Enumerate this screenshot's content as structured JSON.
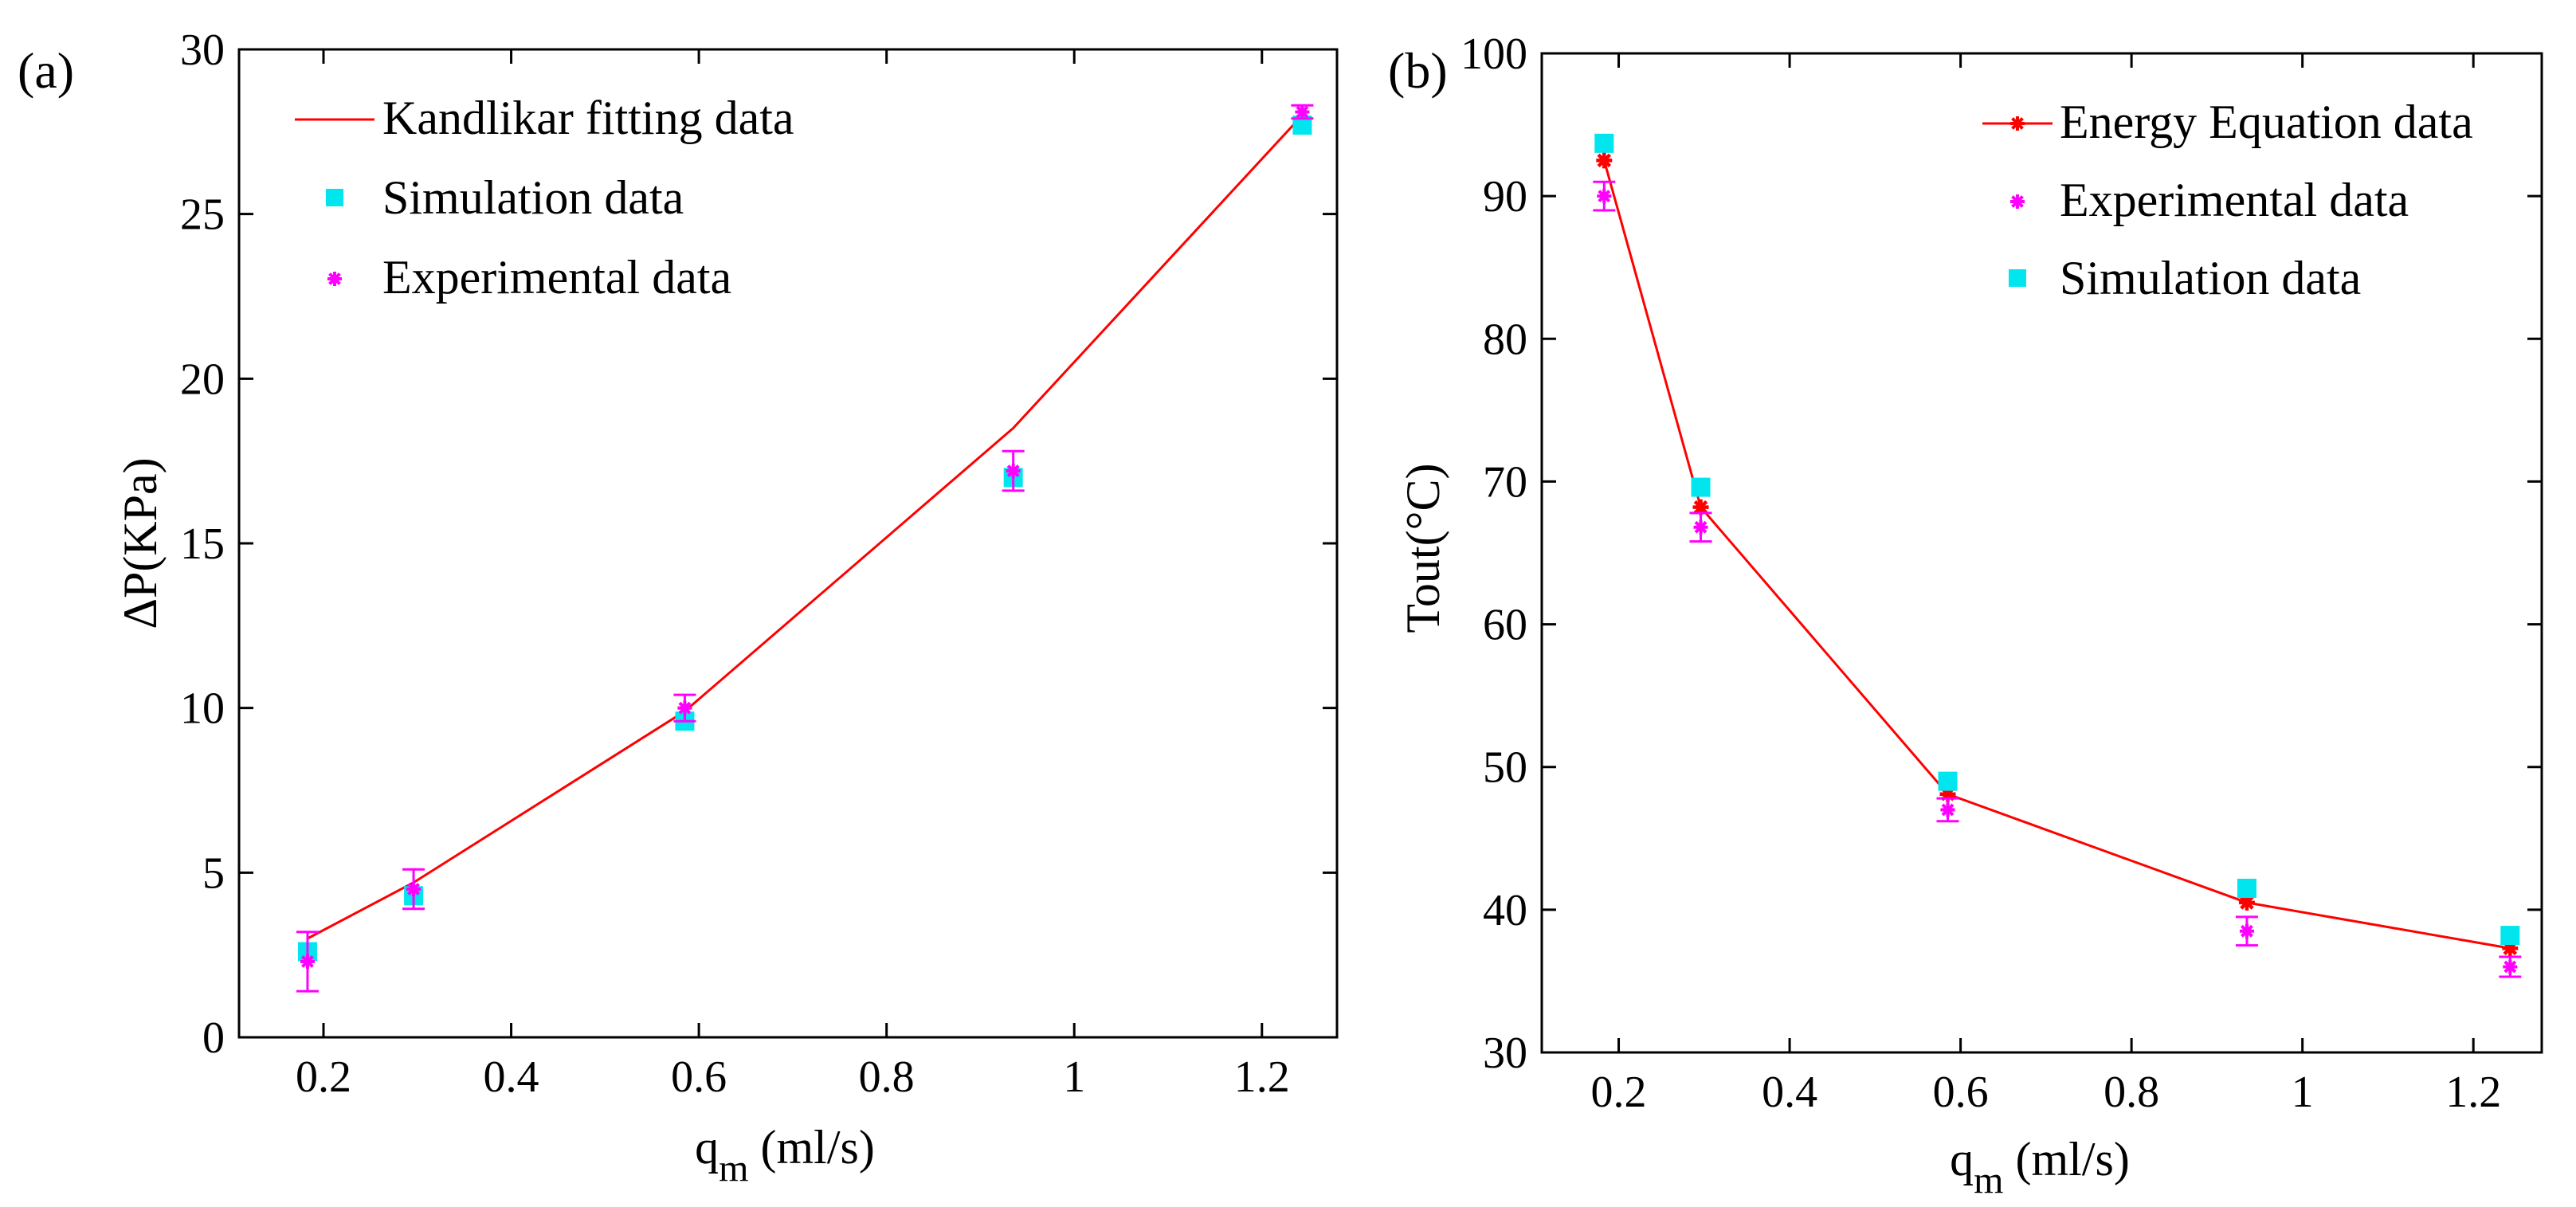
{
  "figure": {
    "panels": [
      {
        "label": "(a)"
      },
      {
        "label": "(b)"
      }
    ]
  },
  "chart_data": [
    {
      "type": "line",
      "panel_label": "(a)",
      "title": "",
      "xlabel": "q_m (ml/s)",
      "xlabel_main": "q",
      "xlabel_sub": "m",
      "xlabel_unit": " (ml/s)",
      "ylabel": "ΔP(KPa)",
      "xlim": [
        0.11,
        1.28
      ],
      "ylim": [
        0,
        30
      ],
      "xticks": [
        0.2,
        0.4,
        0.6,
        0.8,
        1.0,
        1.2
      ],
      "xtick_labels": [
        "0.2",
        "0.4",
        "0.6",
        "0.8",
        "1",
        "1.2"
      ],
      "yticks": [
        0,
        5,
        10,
        15,
        20,
        25,
        30
      ],
      "ytick_labels": [
        "0",
        "5",
        "10",
        "15",
        "20",
        "25",
        "30"
      ],
      "grid": false,
      "legend_position": "top-left",
      "series": [
        {
          "name": "Kandlikar fitting data",
          "kind": "line",
          "color": "#ff0000",
          "x": [
            0.183,
            0.296,
            0.585,
            0.935,
            1.243
          ],
          "y": [
            3.0,
            4.7,
            9.9,
            18.5,
            28.0
          ]
        },
        {
          "name": "Simulation data",
          "kind": "square",
          "color": "#00e5ee",
          "x": [
            0.183,
            0.296,
            0.585,
            0.935,
            1.243
          ],
          "y": [
            2.6,
            4.3,
            9.6,
            17.0,
            27.7
          ]
        },
        {
          "name": "Experimental data",
          "kind": "star",
          "color": "#ff00ff",
          "x": [
            0.183,
            0.296,
            0.585,
            0.935,
            1.243
          ],
          "y": [
            2.3,
            4.5,
            10.0,
            17.2,
            28.1
          ],
          "err": [
            0.9,
            0.6,
            0.4,
            0.6,
            0.2
          ]
        }
      ]
    },
    {
      "type": "line",
      "panel_label": "(b)",
      "title": "",
      "xlabel": "q_m (ml/s)",
      "xlabel_main": "q",
      "xlabel_sub": "m",
      "xlabel_unit": " (ml/s)",
      "ylabel": "Tout(°C)",
      "xlim": [
        0.11,
        1.28
      ],
      "ylim": [
        30,
        100
      ],
      "xticks": [
        0.2,
        0.4,
        0.6,
        0.8,
        1.0,
        1.2
      ],
      "xtick_labels": [
        "0.2",
        "0.4",
        "0.6",
        "0.8",
        "1",
        "1.2"
      ],
      "yticks": [
        30,
        40,
        50,
        60,
        70,
        80,
        90,
        100
      ],
      "ytick_labels": [
        "30",
        "40",
        "50",
        "60",
        "70",
        "80",
        "90",
        "100"
      ],
      "grid": false,
      "legend_position": "top-right",
      "series": [
        {
          "name": "Energy Equation data",
          "kind": "line-star",
          "color": "#ff0000",
          "x": [
            0.183,
            0.296,
            0.585,
            0.935,
            1.243
          ],
          "y": [
            92.5,
            68.2,
            48.1,
            40.5,
            37.3
          ]
        },
        {
          "name": "Experimental data",
          "kind": "star",
          "color": "#ff00ff",
          "x": [
            0.183,
            0.296,
            0.585,
            0.935,
            1.243
          ],
          "y": [
            90.0,
            66.8,
            47.0,
            38.5,
            36.0
          ],
          "err": [
            1.0,
            1.0,
            0.8,
            1.0,
            0.7
          ]
        },
        {
          "name": "Simulation data",
          "kind": "square",
          "color": "#00e5ee",
          "x": [
            0.183,
            0.296,
            0.585,
            0.935,
            1.243
          ],
          "y": [
            93.7,
            69.6,
            49.0,
            41.5,
            38.2
          ]
        }
      ]
    }
  ]
}
